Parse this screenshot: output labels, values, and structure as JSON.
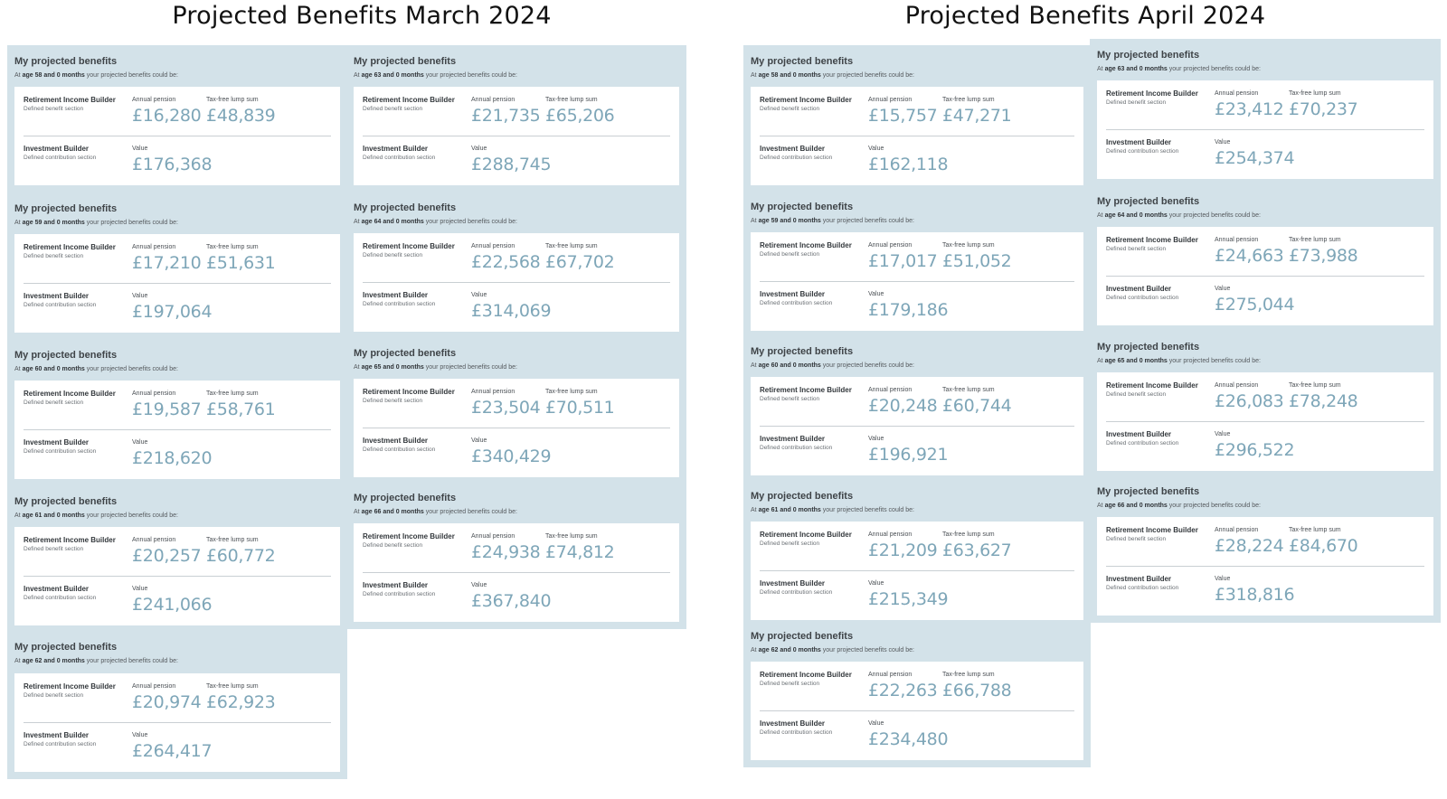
{
  "titles": {
    "left": "Projected Benefits March 2024",
    "right": "Projected Benefits April 2024"
  },
  "labels": {
    "heading": "My projected benefits",
    "age_prefix": "At",
    "age_suffix": "your projected benefits could be:",
    "rib_title": "Retirement Income Builder",
    "rib_sub": "Defined benefit section",
    "ib_title": "Investment Builder",
    "ib_sub": "Defined contribution section",
    "annual_pension": "Annual pension",
    "lump_sum": "Tax-free lump sum",
    "value": "Value"
  },
  "march": [
    {
      "age": "age 58 and 0 months",
      "pension": "£16,280",
      "lump": "£48,839",
      "value": "£176,368"
    },
    {
      "age": "age 59 and 0 months",
      "pension": "£17,210",
      "lump": "£51,631",
      "value": "£197,064"
    },
    {
      "age": "age 60 and 0 months",
      "pension": "£19,587",
      "lump": "£58,761",
      "value": "£218,620"
    },
    {
      "age": "age 61 and 0 months",
      "pension": "£20,257",
      "lump": "£60,772",
      "value": "£241,066"
    },
    {
      "age": "age 62 and 0 months",
      "pension": "£20,974",
      "lump": "£62,923",
      "value": "£264,417"
    },
    {
      "age": "age 63 and 0 months",
      "pension": "£21,735",
      "lump": "£65,206",
      "value": "£288,745"
    },
    {
      "age": "age 64 and 0 months",
      "pension": "£22,568",
      "lump": "£67,702",
      "value": "£314,069"
    },
    {
      "age": "age 65 and 0 months",
      "pension": "£23,504",
      "lump": "£70,511",
      "value": "£340,429"
    },
    {
      "age": "age 66 and 0 months",
      "pension": "£24,938",
      "lump": "£74,812",
      "value": "£367,840"
    }
  ],
  "april": [
    {
      "age": "age 58 and 0 months",
      "pension": "£15,757",
      "lump": "£47,271",
      "value": "£162,118"
    },
    {
      "age": "age 59 and 0 months",
      "pension": "£17,017",
      "lump": "£51,052",
      "value": "£179,186"
    },
    {
      "age": "age 60 and 0 months",
      "pension": "£20,248",
      "lump": "£60,744",
      "value": "£196,921"
    },
    {
      "age": "age 61 and 0 months",
      "pension": "£21,209",
      "lump": "£63,627",
      "value": "£215,349"
    },
    {
      "age": "age 62 and 0 months",
      "pension": "£22,263",
      "lump": "£66,788",
      "value": "£234,480"
    },
    {
      "age": "age 63 and 0 months",
      "pension": "£23,412",
      "lump": "£70,237",
      "value": "£254,374"
    },
    {
      "age": "age 64 and 0 months",
      "pension": "£24,663",
      "lump": "£73,988",
      "value": "£275,044"
    },
    {
      "age": "age 65 and 0 months",
      "pension": "£26,083",
      "lump": "£78,248",
      "value": "£296,522"
    },
    {
      "age": "age 66 and 0 months",
      "pension": "£28,224",
      "lump": "£84,670",
      "value": "£318,816"
    }
  ]
}
